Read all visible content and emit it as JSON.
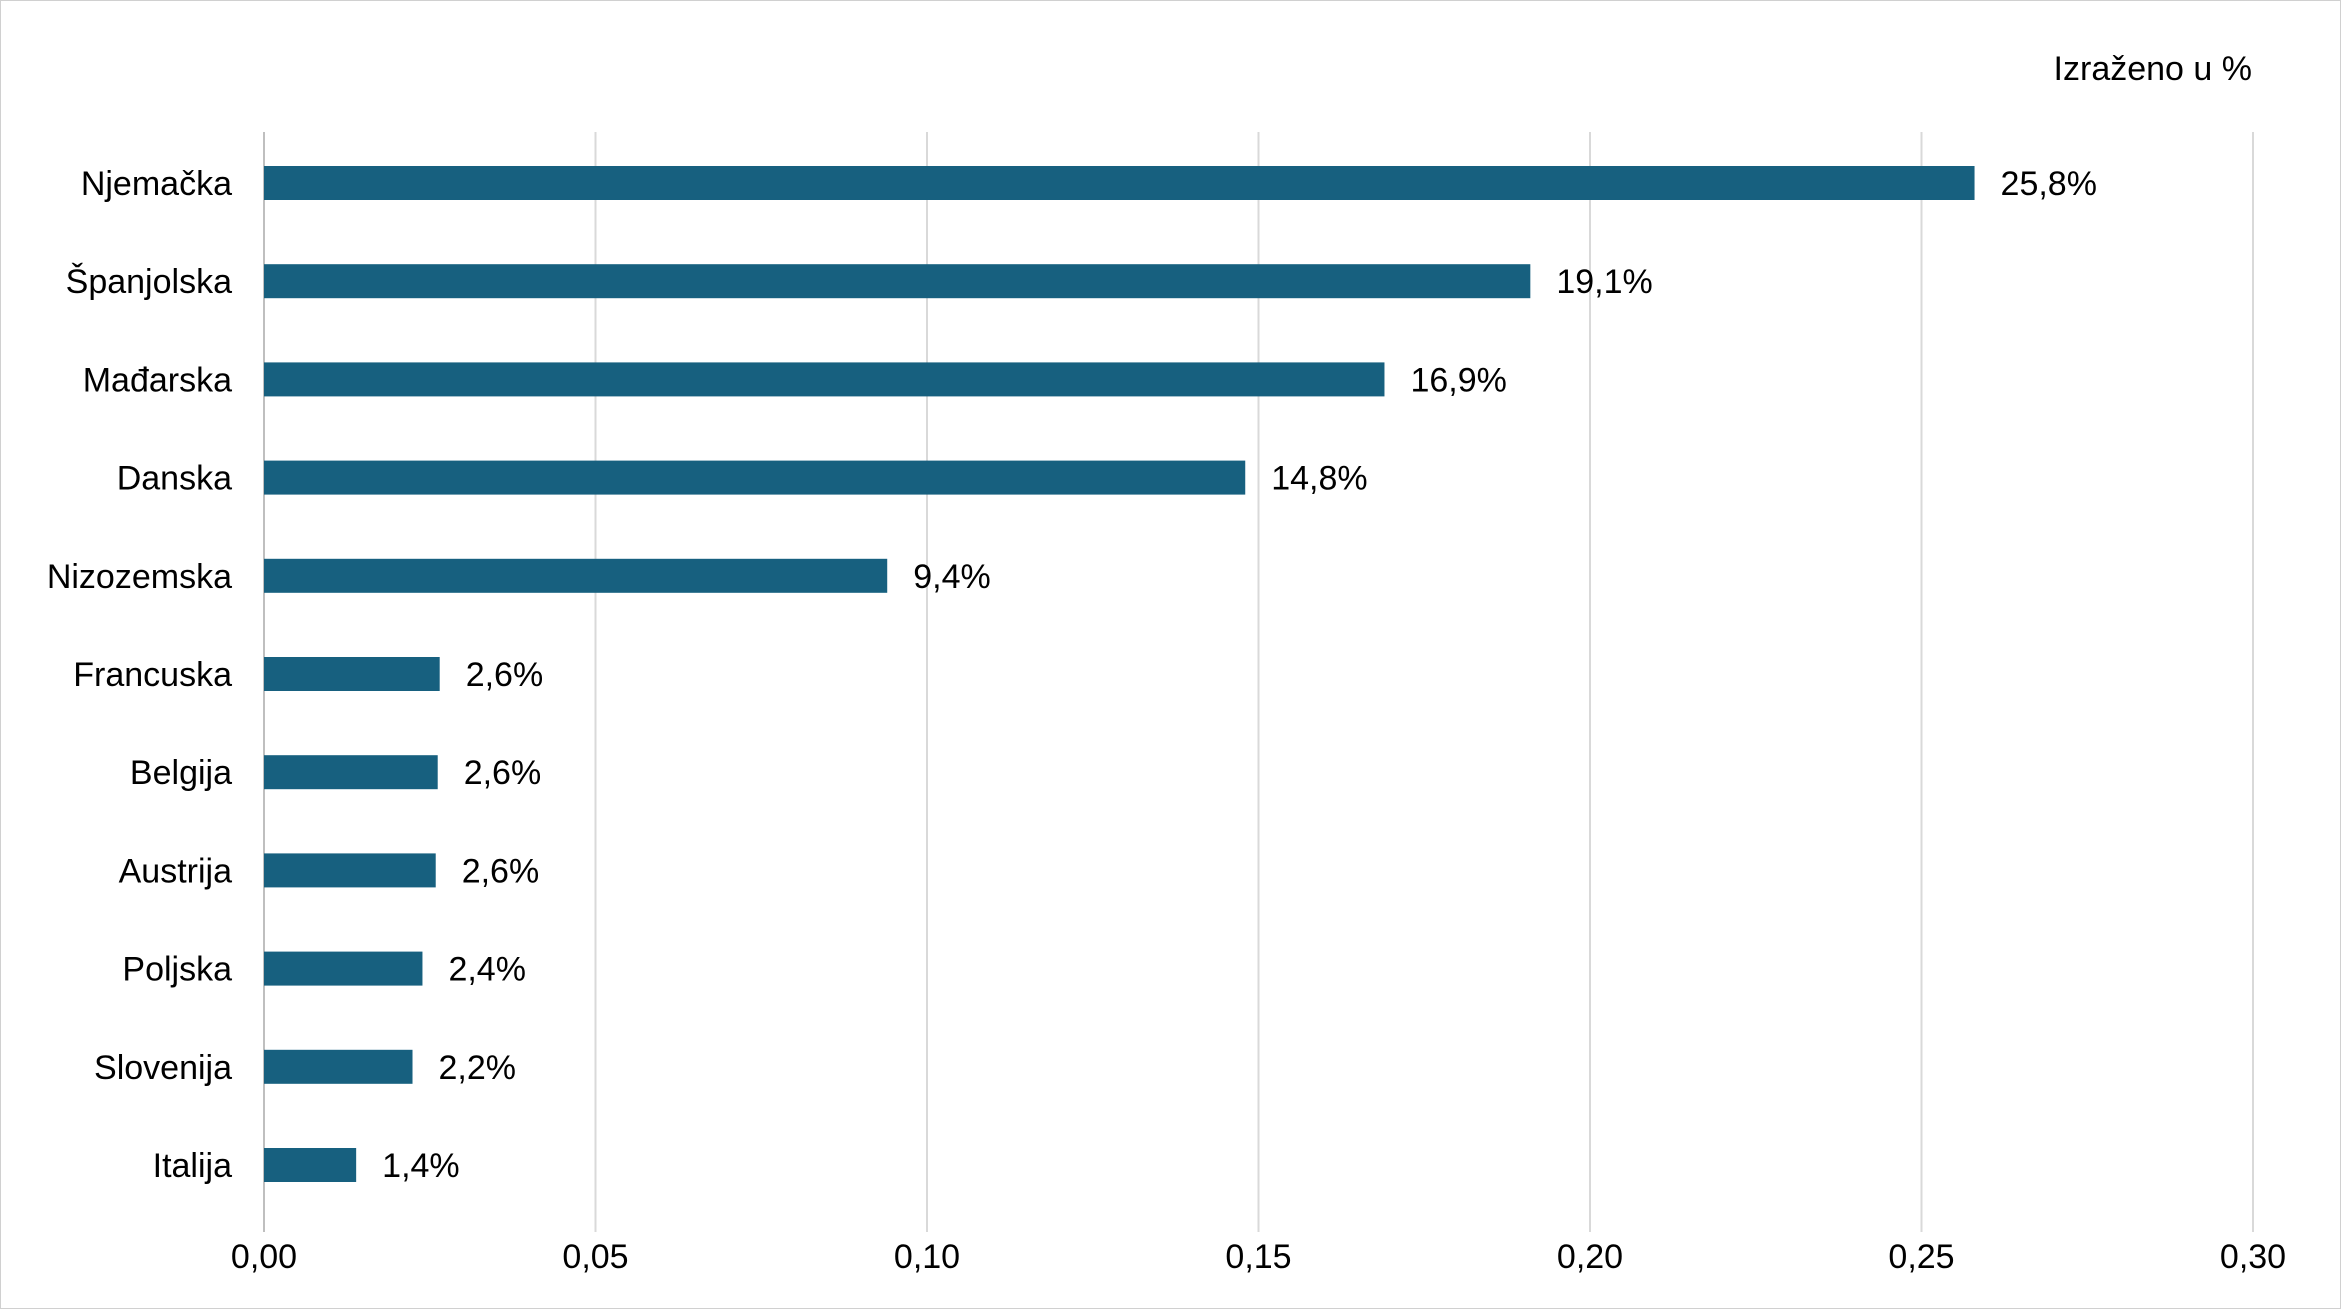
{
  "chart_data": {
    "type": "bar",
    "orientation": "horizontal",
    "unit_note": "Izraženo u %",
    "categories": [
      "Njemačka",
      "Španjolska",
      "Mađarska",
      "Danska",
      "Nizozemska",
      "Francuska",
      "Belgija",
      "Austrija",
      "Poljska",
      "Slovenija",
      "Italija"
    ],
    "values": [
      0.258,
      0.191,
      0.169,
      0.148,
      0.094,
      0.0265,
      0.0262,
      0.0259,
      0.0239,
      0.0224,
      0.0139
    ],
    "value_labels": [
      "25,8%",
      "19,1%",
      "16,9%",
      "14,8%",
      "9,4%",
      "2,6%",
      "2,6%",
      "2,6%",
      "2,4%",
      "2,2%",
      "1,4%"
    ],
    "xlim": [
      0,
      0.3
    ],
    "x_ticks": [
      0,
      0.05,
      0.1,
      0.15,
      0.2,
      0.25,
      0.3
    ],
    "x_tick_labels": [
      "0,00",
      "0,05",
      "0,10",
      "0,15",
      "0,20",
      "0,25",
      "0,30"
    ],
    "grid": "vertical",
    "legend": "none",
    "bar_color": "#17607f",
    "grid_color": "#d9d9d9",
    "axis_color": "#bfbfbf"
  }
}
